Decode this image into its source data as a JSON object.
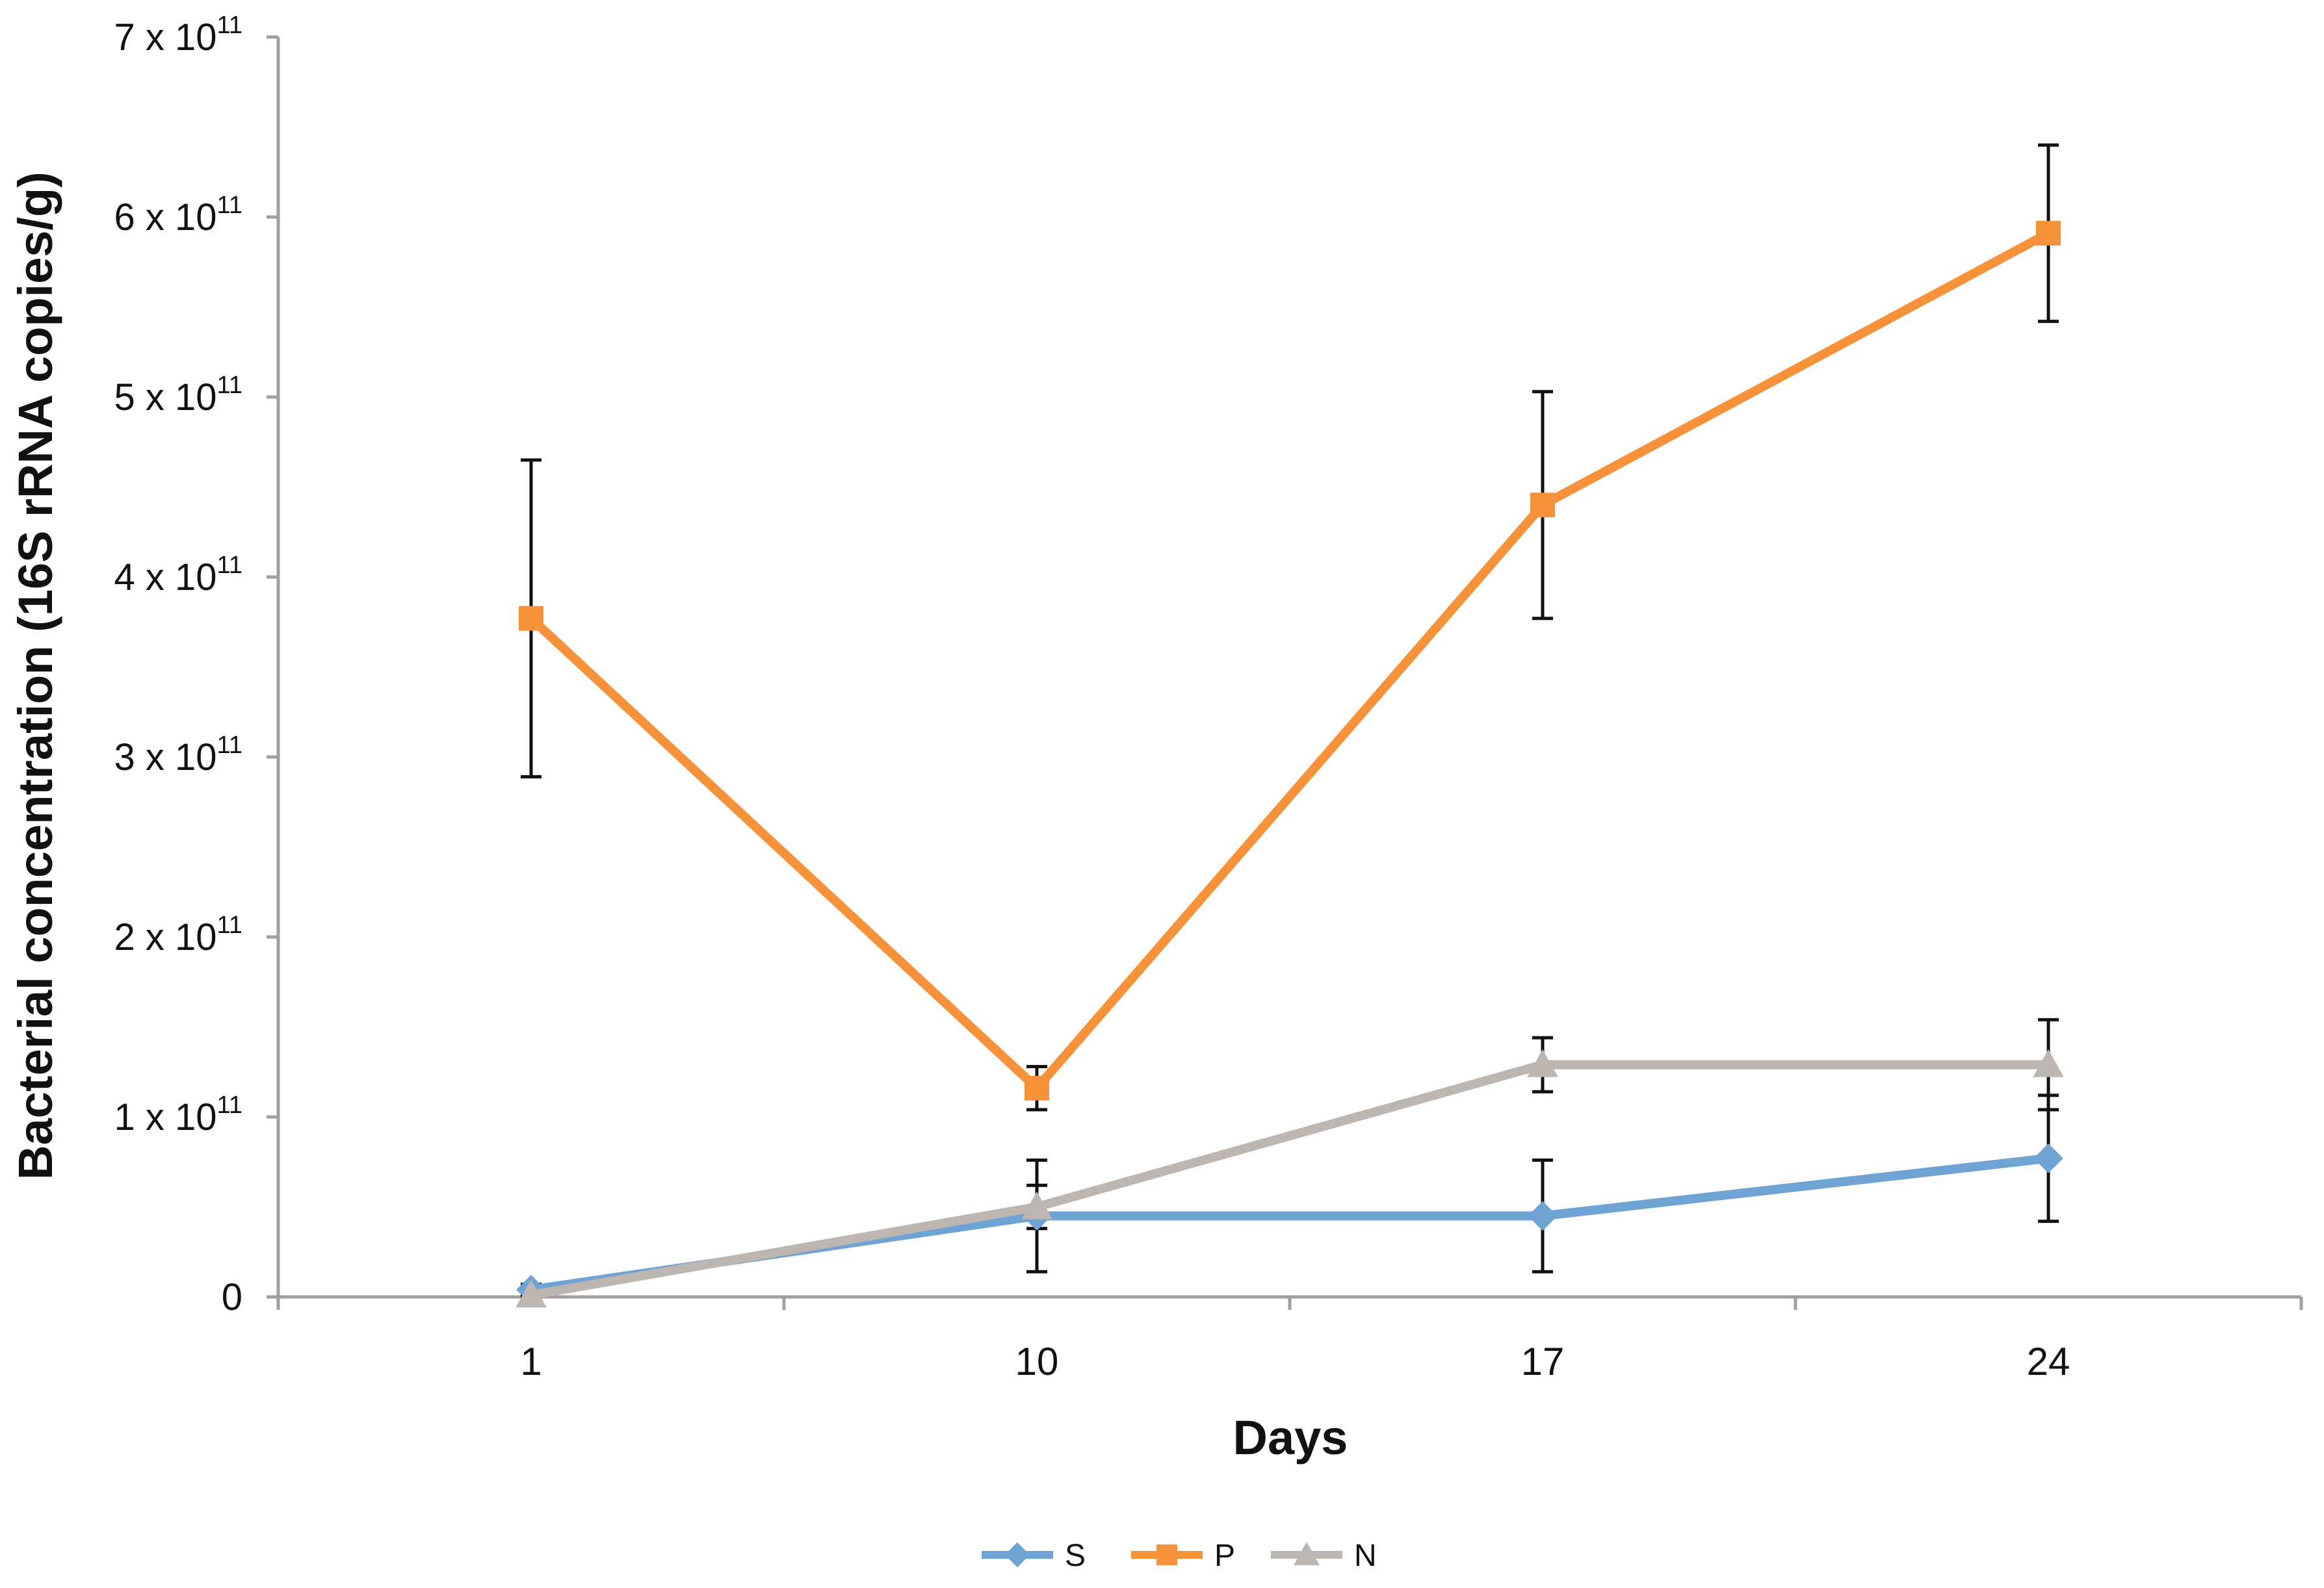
{
  "chart_data": {
    "type": "line",
    "title": "",
    "xlabel": "Days",
    "ylabel": "Bacterial concentration (16S rRNA copies/g)",
    "categories": [
      "1",
      "10",
      "17",
      "24"
    ],
    "ylim": [
      0,
      700000000000.0
    ],
    "y_ticks": [
      {
        "value": 0,
        "base": "0",
        "exp": ""
      },
      {
        "value": 100000000000.0,
        "base": "1 x 10",
        "exp": "11"
      },
      {
        "value": 200000000000.0,
        "base": "2 x 10",
        "exp": "11"
      },
      {
        "value": 300000000000.0,
        "base": "3 x 10",
        "exp": "11"
      },
      {
        "value": 400000000000.0,
        "base": "4 x 10",
        "exp": "11"
      },
      {
        "value": 500000000000.0,
        "base": "5 x 10",
        "exp": "11"
      },
      {
        "value": 600000000000.0,
        "base": "6 x 10",
        "exp": "11"
      },
      {
        "value": 700000000000.0,
        "base": "7 x 10",
        "exp": "11"
      }
    ],
    "grid": false,
    "legend_position": "bottom-center",
    "series": [
      {
        "name": "S",
        "color": "#6fa3d3",
        "marker": "diamond",
        "values": [
          4000000000.0,
          45000000000.0,
          45000000000.0,
          77000000000.0
        ],
        "errors": [
          3000000000.0,
          31000000000.0,
          31000000000.0,
          35000000000.0
        ]
      },
      {
        "name": "P",
        "color": "#f7923a",
        "marker": "square",
        "values": [
          377000000000.0,
          116000000000.0,
          440000000000.0,
          591000000000.0
        ],
        "errors": [
          88000000000.0,
          12000000000.0,
          63000000000.0,
          49000000000.0
        ]
      },
      {
        "name": "N",
        "color": "#bcb5b0",
        "marker": "triangle",
        "values": [
          1000000000.0,
          50000000000.0,
          129000000000.0,
          129000000000.0
        ],
        "errors": [
          2000000000.0,
          12000000000.0,
          15000000000.0,
          25000000000.0
        ]
      }
    ]
  }
}
